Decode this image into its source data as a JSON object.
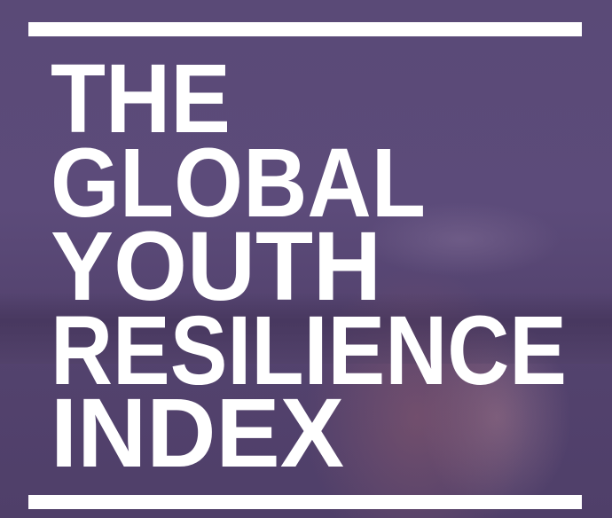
{
  "title": {
    "lines": [
      "THE",
      "GLOBAL",
      "YOUTH",
      "RESILIENCE",
      "INDEX"
    ]
  },
  "colors": {
    "background": "#5b4a78",
    "text": "#ffffff",
    "bars": "#ffffff"
  }
}
